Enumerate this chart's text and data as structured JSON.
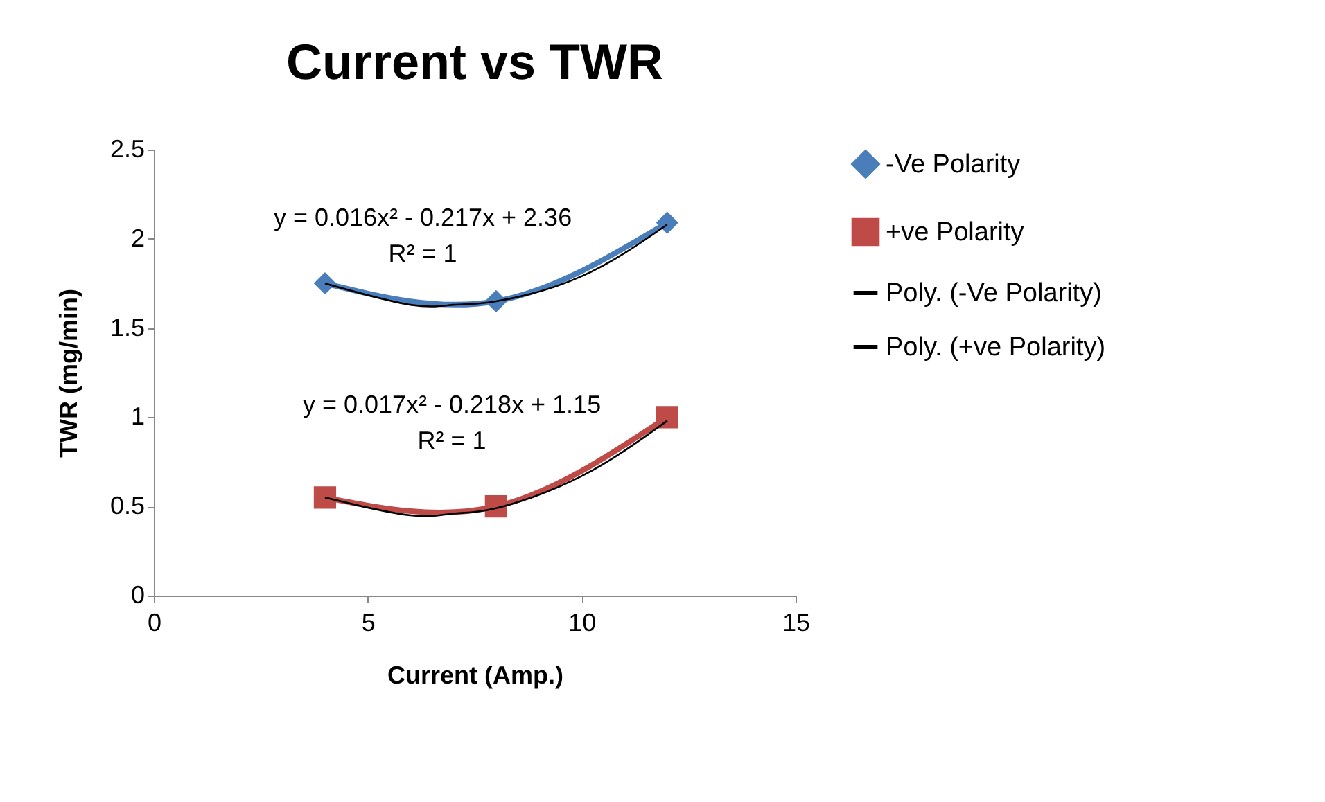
{
  "chart_data": {
    "type": "line",
    "title": "Current vs TWR",
    "xlabel": "Current (Amp.)",
    "ylabel": "TWR (mg/min)",
    "xlim": [
      0,
      15
    ],
    "xticks": [
      0,
      5,
      10,
      15
    ],
    "ylim": [
      0,
      2.5
    ],
    "yticks": [
      0,
      0.5,
      1,
      1.5,
      2,
      2.5
    ],
    "grid": false,
    "legend": "right",
    "series": [
      {
        "name": "-Ve Polarity",
        "color": "#4a7ebb",
        "marker": "diamond",
        "x": [
          4,
          8,
          12
        ],
        "values": [
          1.75,
          1.65,
          2.09
        ]
      },
      {
        "name": "+ve Polarity",
        "color": "#be4b48",
        "marker": "square",
        "x": [
          4,
          8,
          12
        ],
        "values": [
          0.55,
          0.5,
          1.0
        ]
      },
      {
        "name": "Poly. (-Ve Polarity)",
        "type": "line",
        "color": "#000000",
        "marker": "none",
        "x": [
          4,
          6,
          7,
          8,
          10,
          12
        ],
        "values": [
          1.75,
          1.63,
          1.63,
          1.65,
          1.79,
          2.08
        ]
      },
      {
        "name": "Poly. (+ve Polarity)",
        "type": "line",
        "color": "#000000",
        "marker": "none",
        "x": [
          4,
          6,
          7,
          8,
          10,
          12
        ],
        "values": [
          0.55,
          0.45,
          0.46,
          0.49,
          0.67,
          0.98
        ]
      }
    ],
    "annotations": [
      "y = 0.016x² - 0.217x + 2.36",
      "R² = 1",
      "y = 0.017x² - 0.218x + 1.15",
      "R² = 1"
    ]
  }
}
